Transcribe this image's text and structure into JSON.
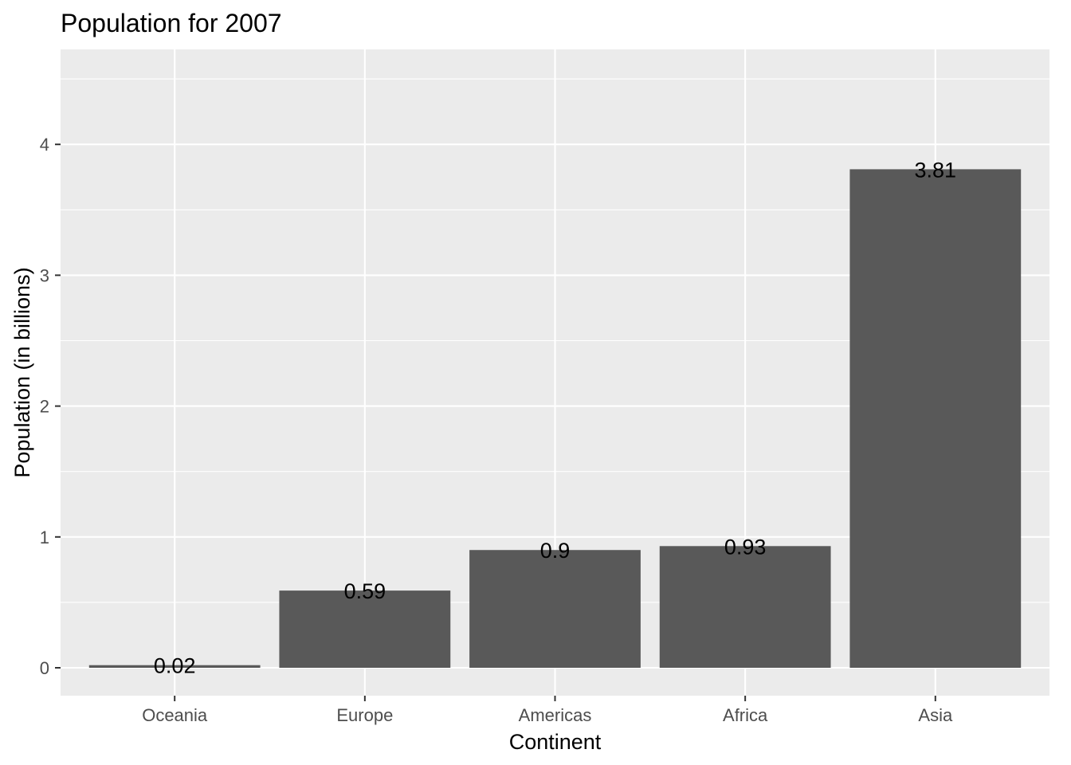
{
  "chart_data": {
    "type": "bar",
    "title": "Population for 2007",
    "xlabel": "Continent",
    "ylabel": "Population (in billions)",
    "categories": [
      "Oceania",
      "Europe",
      "Americas",
      "Africa",
      "Asia"
    ],
    "values": [
      0.02,
      0.59,
      0.9,
      0.93,
      3.81
    ],
    "data_labels": [
      "0.02",
      "0.59",
      "0.9",
      "0.93",
      "3.81"
    ],
    "ylim": [
      -0.2,
      4.7
    ],
    "yticks": [
      0,
      1,
      2,
      3,
      4
    ],
    "ytick_labels": [
      "0",
      "1",
      "2",
      "3",
      "4"
    ],
    "grid": true,
    "legend": "none",
    "colors": {
      "bar": "#595959",
      "panel": "#EBEBEB",
      "grid": "#FFFFFF",
      "tick": "#333333"
    }
  }
}
